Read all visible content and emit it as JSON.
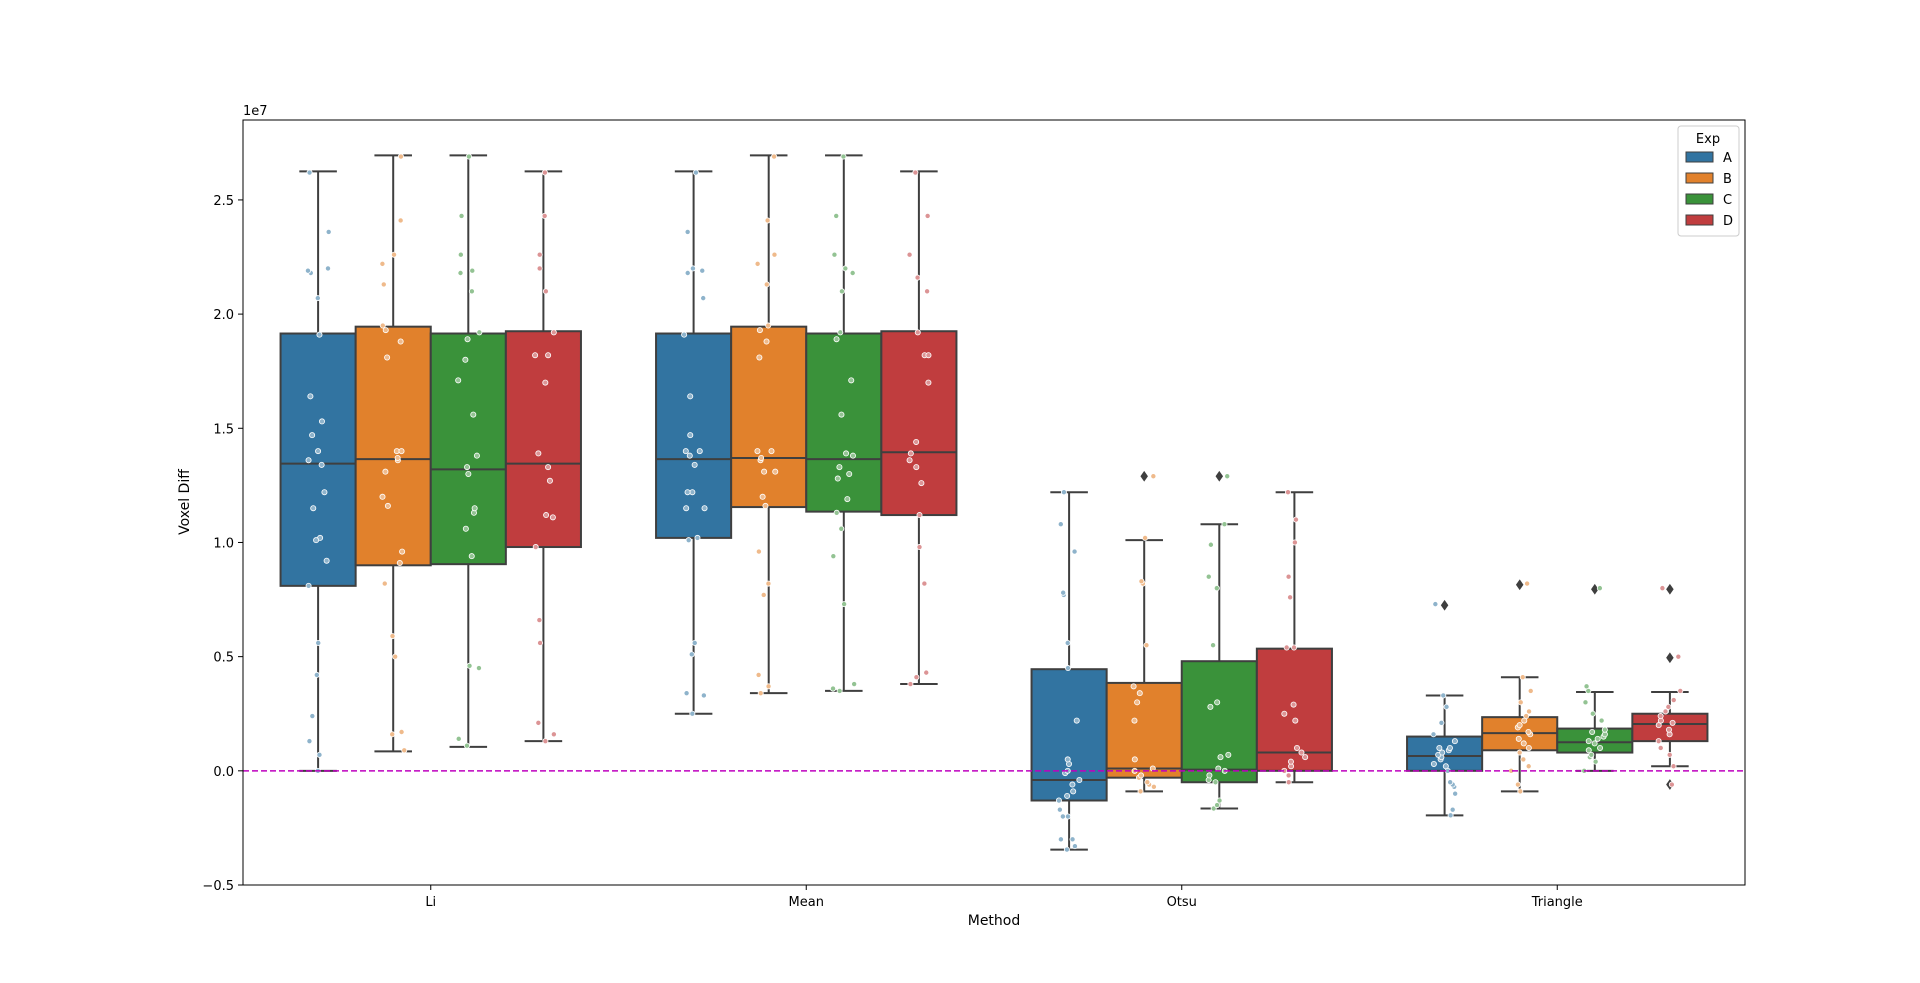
{
  "chart_data": {
    "type": "box",
    "title": "",
    "xlabel": "Method",
    "ylabel": "Voxel Diff",
    "y_offset_label": "1e7",
    "ylim": [
      -0.5,
      2.85
    ],
    "yticks": [
      -0.5,
      0.0,
      0.5,
      1.0,
      1.5,
      2.0,
      2.5
    ],
    "ytick_labels": [
      "−0.5",
      "0.0",
      "0.5",
      "1.0",
      "1.5",
      "2.0",
      "2.5"
    ],
    "categories": [
      "Li",
      "Mean",
      "Otsu",
      "Triangle"
    ],
    "legend": {
      "title": "Exp",
      "position": "top-right"
    },
    "reference_line": {
      "y": 0.0,
      "color": "#bf00bf",
      "style": "dashed"
    },
    "grid": false,
    "series": [
      {
        "name": "A",
        "color": "#3274a1",
        "boxes": [
          {
            "whislo": 0.0,
            "q1": 0.81,
            "med": 1.345,
            "q3": 1.915,
            "whishi": 2.625,
            "fliers": [],
            "points": [
              0.0,
              0.07,
              0.13,
              0.24,
              0.42,
              0.56,
              0.81,
              0.92,
              1.02,
              1.01,
              1.15,
              1.22,
              1.34,
              1.36,
              1.4,
              1.47,
              1.53,
              1.64,
              1.91,
              2.07,
              2.18,
              2.19,
              2.2,
              2.36,
              2.62
            ]
          },
          {
            "whislo": 0.25,
            "q1": 1.02,
            "med": 1.365,
            "q3": 1.915,
            "whishi": 2.625,
            "fliers": [],
            "points": [
              0.25,
              0.33,
              0.34,
              0.51,
              0.56,
              1.02,
              1.01,
              1.15,
              1.15,
              1.22,
              1.22,
              1.34,
              1.38,
              1.4,
              1.4,
              1.47,
              1.64,
              1.91,
              2.07,
              2.18,
              2.19,
              2.2,
              2.36,
              2.62
            ]
          },
          {
            "whislo": -0.345,
            "q1": -0.13,
            "med": -0.04,
            "q3": 0.445,
            "whishi": 1.22,
            "fliers": [],
            "points": [
              -0.345,
              -0.33,
              -0.3,
              -0.3,
              -0.2,
              -0.2,
              -0.17,
              -0.13,
              -0.11,
              -0.09,
              -0.06,
              -0.04,
              -0.01,
              0.0,
              0.03,
              0.05,
              0.22,
              0.45,
              0.56,
              0.77,
              0.78,
              0.96,
              1.08,
              1.22
            ]
          },
          {
            "whislo": -0.195,
            "q1": 0.0,
            "med": 0.065,
            "q3": 0.15,
            "whishi": 0.33,
            "fliers": [
              0.725
            ],
            "points": [
              -0.195,
              -0.17,
              -0.1,
              -0.07,
              -0.06,
              -0.05,
              0.0,
              0.02,
              0.03,
              0.05,
              0.06,
              0.07,
              0.08,
              0.09,
              0.1,
              0.1,
              0.13,
              0.16,
              0.21,
              0.28,
              0.33,
              0.73
            ]
          }
        ]
      },
      {
        "name": "B",
        "color": "#e1812c",
        "boxes": [
          {
            "whislo": 0.085,
            "q1": 0.9,
            "med": 1.365,
            "q3": 1.945,
            "whishi": 2.695,
            "fliers": [],
            "points": [
              0.09,
              0.16,
              0.17,
              0.5,
              0.59,
              0.82,
              0.91,
              0.96,
              1.16,
              1.2,
              1.31,
              1.36,
              1.37,
              1.4,
              1.4,
              1.81,
              1.88,
              1.93,
              1.95,
              2.13,
              2.22,
              2.26,
              2.41,
              2.69
            ]
          },
          {
            "whislo": 0.34,
            "q1": 1.155,
            "med": 1.37,
            "q3": 1.945,
            "whishi": 2.695,
            "fliers": [],
            "points": [
              0.34,
              0.37,
              0.42,
              0.77,
              0.82,
              0.96,
              1.16,
              1.2,
              1.31,
              1.31,
              1.36,
              1.37,
              1.4,
              1.4,
              1.81,
              1.88,
              1.93,
              1.95,
              2.13,
              2.22,
              2.26,
              2.41,
              2.69
            ]
          },
          {
            "whislo": -0.09,
            "q1": -0.03,
            "med": 0.01,
            "q3": 0.385,
            "whishi": 1.01,
            "fliers": [
              1.29
            ],
            "points": [
              -0.09,
              -0.07,
              -0.06,
              -0.05,
              -0.03,
              -0.02,
              0.0,
              0.01,
              0.05,
              0.22,
              0.3,
              0.34,
              0.37,
              0.55,
              0.82,
              0.83,
              1.02,
              1.29
            ]
          },
          {
            "whislo": -0.09,
            "q1": 0.09,
            "med": 0.165,
            "q3": 0.235,
            "whishi": 0.41,
            "fliers": [
              0.815
            ],
            "points": [
              -0.09,
              -0.06,
              0.0,
              0.02,
              0.05,
              0.08,
              0.1,
              0.12,
              0.14,
              0.16,
              0.17,
              0.19,
              0.2,
              0.22,
              0.24,
              0.26,
              0.3,
              0.35,
              0.41,
              0.82
            ]
          }
        ]
      },
      {
        "name": "C",
        "color": "#3a923a",
        "boxes": [
          {
            "whislo": 0.105,
            "q1": 0.905,
            "med": 1.32,
            "q3": 1.915,
            "whishi": 2.695,
            "fliers": [],
            "points": [
              0.11,
              0.14,
              0.45,
              0.46,
              0.94,
              1.06,
              1.13,
              1.15,
              1.3,
              1.33,
              1.38,
              1.56,
              1.71,
              1.8,
              1.89,
              1.92,
              2.1,
              2.18,
              2.19,
              2.26,
              2.43,
              2.69
            ]
          },
          {
            "whislo": 0.35,
            "q1": 1.135,
            "med": 1.365,
            "q3": 1.915,
            "whishi": 2.695,
            "fliers": [],
            "points": [
              0.35,
              0.36,
              0.38,
              0.73,
              0.94,
              1.06,
              1.13,
              1.19,
              1.28,
              1.3,
              1.33,
              1.38,
              1.39,
              1.56,
              1.71,
              1.89,
              1.92,
              2.1,
              2.18,
              2.2,
              2.26,
              2.43,
              2.69
            ]
          },
          {
            "whislo": -0.165,
            "q1": -0.05,
            "med": 0.005,
            "q3": 0.48,
            "whishi": 1.08,
            "fliers": [
              1.29
            ],
            "points": [
              -0.165,
              -0.15,
              -0.13,
              -0.05,
              -0.04,
              -0.02,
              0.0,
              0.01,
              0.06,
              0.07,
              0.28,
              0.3,
              0.55,
              0.8,
              0.85,
              0.99,
              1.08,
              1.29
            ]
          },
          {
            "whislo": 0.0,
            "q1": 0.08,
            "med": 0.125,
            "q3": 0.185,
            "whishi": 0.345,
            "fliers": [
              0.795
            ],
            "points": [
              0.0,
              0.04,
              0.06,
              0.07,
              0.09,
              0.1,
              0.12,
              0.13,
              0.14,
              0.15,
              0.16,
              0.17,
              0.18,
              0.22,
              0.25,
              0.3,
              0.35,
              0.37,
              0.8
            ]
          }
        ]
      },
      {
        "name": "D",
        "color": "#c03d3e",
        "boxes": [
          {
            "whislo": 0.13,
            "q1": 0.98,
            "med": 1.345,
            "q3": 1.925,
            "whishi": 2.625,
            "fliers": [],
            "points": [
              0.13,
              0.16,
              0.21,
              0.56,
              0.66,
              0.98,
              1.11,
              1.12,
              1.27,
              1.33,
              1.39,
              1.7,
              1.82,
              1.82,
              1.92,
              2.1,
              2.2,
              2.26,
              2.43,
              2.62
            ]
          },
          {
            "whislo": 0.38,
            "q1": 1.12,
            "med": 1.395,
            "q3": 1.925,
            "whishi": 2.625,
            "fliers": [],
            "points": [
              0.38,
              0.41,
              0.43,
              0.82,
              0.98,
              1.12,
              1.26,
              1.33,
              1.36,
              1.39,
              1.44,
              1.7,
              1.82,
              1.82,
              1.92,
              2.1,
              2.16,
              2.26,
              2.43,
              2.62
            ]
          },
          {
            "whislo": -0.05,
            "q1": 0.0,
            "med": 0.08,
            "q3": 0.535,
            "whishi": 1.22,
            "fliers": [],
            "points": [
              -0.05,
              -0.02,
              0.0,
              0.02,
              0.04,
              0.06,
              0.08,
              0.1,
              0.22,
              0.25,
              0.29,
              0.54,
              0.54,
              0.76,
              0.85,
              1.0,
              1.1,
              1.22
            ]
          },
          {
            "whislo": 0.02,
            "q1": 0.13,
            "med": 0.205,
            "q3": 0.25,
            "whishi": 0.345,
            "fliers": [
              -0.06,
              0.495,
              0.795
            ],
            "points": [
              -0.06,
              0.02,
              0.07,
              0.1,
              0.13,
              0.16,
              0.18,
              0.2,
              0.21,
              0.22,
              0.24,
              0.26,
              0.28,
              0.31,
              0.35,
              0.5,
              0.8
            ]
          }
        ]
      }
    ]
  }
}
